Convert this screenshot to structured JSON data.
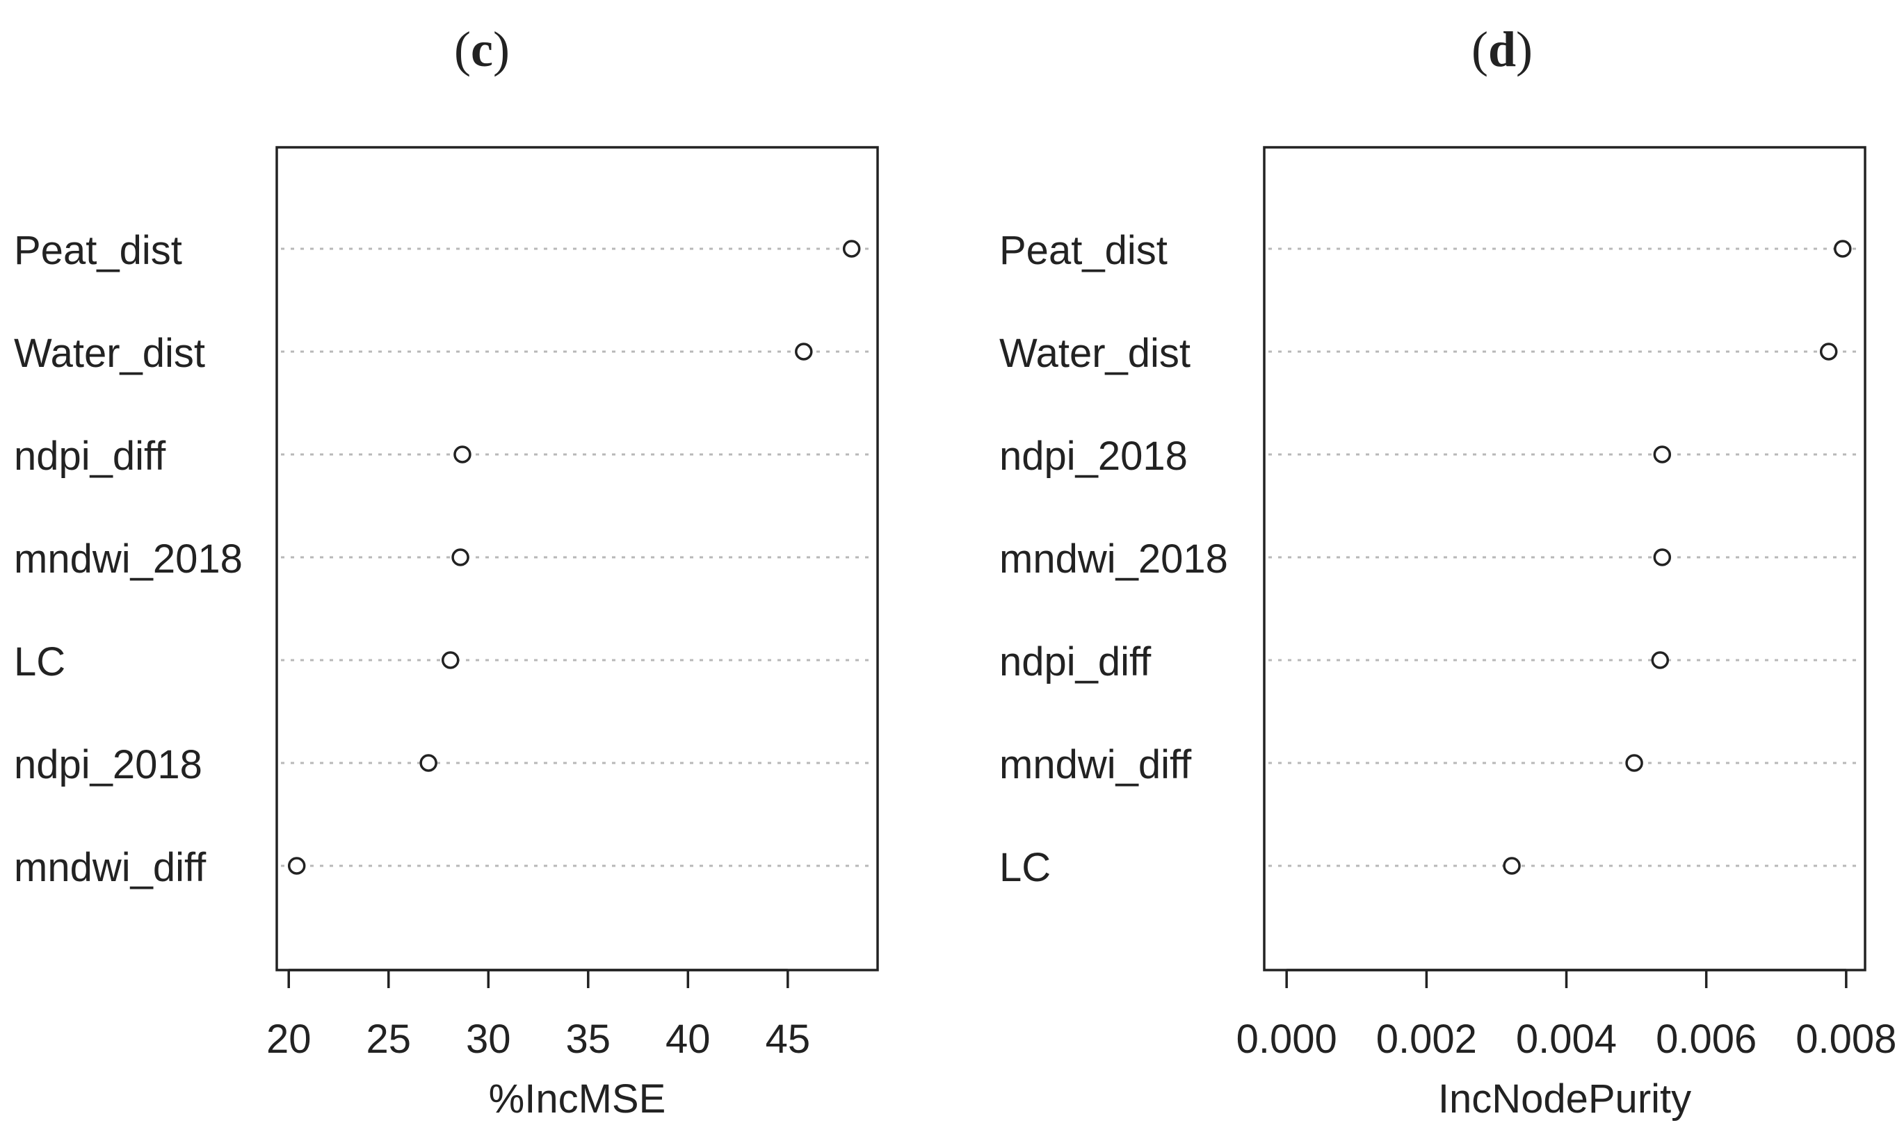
{
  "chart_data": [
    {
      "type": "scatter",
      "panel_label": "c",
      "title": "",
      "xlabel": "%IncMSE",
      "ylabel": "",
      "xlim": [
        19.4,
        49.5
      ],
      "xticks": [
        "20",
        "25",
        "30",
        "35",
        "40",
        "45"
      ],
      "tick_values": [
        20,
        25,
        30,
        35,
        40,
        45
      ],
      "grid": "dotted horizontal guide lines",
      "categories": [
        "Peat_dist",
        "Water_dist",
        "ndpi_diff",
        "mndwi_2018",
        "LC",
        "ndpi_2018",
        "mndwi_diff"
      ],
      "values": [
        48.2,
        45.8,
        28.7,
        28.6,
        28.1,
        27.0,
        20.4
      ]
    },
    {
      "type": "scatter",
      "panel_label": "d",
      "title": "",
      "xlabel": "IncNodePurity",
      "ylabel": "",
      "xlim": [
        -0.00032,
        0.00827
      ],
      "xticks": [
        "0.000",
        "0.002",
        "0.004",
        "0.006",
        "0.008"
      ],
      "tick_values": [
        0,
        0.002,
        0.004,
        0.006,
        0.008
      ],
      "grid": "dotted horizontal guide lines",
      "categories": [
        "Peat_dist",
        "Water_dist",
        "ndpi_2018",
        "mndwi_2018",
        "ndpi_diff",
        "mndwi_diff",
        "LC"
      ],
      "values": [
        0.00795,
        0.00775,
        0.00537,
        0.00537,
        0.00534,
        0.00497,
        0.00322
      ]
    }
  ]
}
